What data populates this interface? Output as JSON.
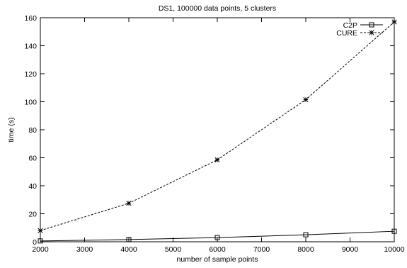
{
  "chart_data": {
    "type": "line",
    "title": "DS1, 100000 data points, 5 clusters",
    "xlabel": "number of sample points",
    "ylabel": "time (s)",
    "xlim": [
      2000,
      10000
    ],
    "ylim": [
      0,
      160
    ],
    "xticks": [
      2000,
      3000,
      4000,
      5000,
      6000,
      7000,
      8000,
      9000,
      10000
    ],
    "yticks": [
      0,
      20,
      40,
      60,
      80,
      100,
      120,
      140,
      160
    ],
    "grid": false,
    "legend_position": "top-right",
    "x": [
      2000,
      4000,
      6000,
      8000,
      10000
    ],
    "series": [
      {
        "name": "C2P",
        "values": [
          0.6,
          1.6,
          3.0,
          5.0,
          7.5
        ],
        "marker": "square",
        "line_style": "solid",
        "color": "#000000"
      },
      {
        "name": "CURE",
        "values": [
          8.0,
          27.5,
          58.5,
          101.5,
          157.0
        ],
        "marker": "asterisk",
        "line_style": "dashed",
        "color": "#000000"
      }
    ]
  }
}
